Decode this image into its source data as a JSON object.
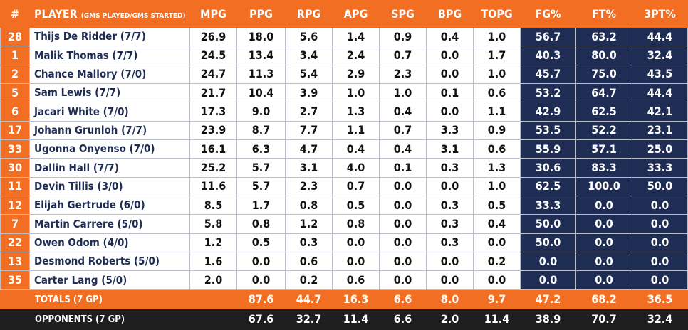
{
  "header": {
    "num": "#",
    "player": "PLAYER",
    "player_sub": "(GMS PLAYED/GMS STARTED)",
    "cols": [
      "MPG",
      "PPG",
      "RPG",
      "APG",
      "SPG",
      "BPG",
      "TOPG",
      "FG%",
      "FT%",
      "3PT%"
    ]
  },
  "players": [
    {
      "num": "28",
      "name": "Thijs De Ridder (7/7)",
      "stats": [
        "26.9",
        "18.0",
        "5.6",
        "1.4",
        "0.9",
        "0.4",
        "1.0",
        "56.7",
        "63.2",
        "44.4"
      ]
    },
    {
      "num": "1",
      "name": "Malik Thomas (7/7)",
      "stats": [
        "24.5",
        "13.4",
        "3.4",
        "2.4",
        "0.7",
        "0.0",
        "1.7",
        "40.3",
        "80.0",
        "32.4"
      ]
    },
    {
      "num": "2",
      "name": "Chance Mallory (7/0)",
      "stats": [
        "24.7",
        "11.3",
        "5.4",
        "2.9",
        "2.3",
        "0.0",
        "1.0",
        "45.7",
        "75.0",
        "43.5"
      ]
    },
    {
      "num": "5",
      "name": "Sam Lewis (7/7)",
      "stats": [
        "21.7",
        "10.4",
        "3.9",
        "1.0",
        "1.0",
        "0.1",
        "0.6",
        "53.2",
        "64.7",
        "44.4"
      ]
    },
    {
      "num": "6",
      "name": "Jacari White (7/0)",
      "stats": [
        "17.3",
        "9.0",
        "2.7",
        "1.3",
        "0.4",
        "0.0",
        "1.1",
        "42.9",
        "62.5",
        "42.1"
      ]
    },
    {
      "num": "17",
      "name": "Johann Grunloh (7/7)",
      "stats": [
        "23.9",
        "8.7",
        "7.7",
        "1.1",
        "0.7",
        "3.3",
        "0.9",
        "53.5",
        "52.2",
        "23.1"
      ]
    },
    {
      "num": "33",
      "name": "Ugonna Onyenso (7/0)",
      "stats": [
        "16.1",
        "6.3",
        "4.7",
        "0.4",
        "0.4",
        "3.1",
        "0.6",
        "55.9",
        "57.1",
        "25.0"
      ]
    },
    {
      "num": "30",
      "name": "Dallin Hall (7/7)",
      "stats": [
        "25.2",
        "5.7",
        "3.1",
        "4.0",
        "0.1",
        "0.3",
        "1.3",
        "30.6",
        "83.3",
        "33.3"
      ]
    },
    {
      "num": "11",
      "name": "Devin Tillis (3/0)",
      "stats": [
        "11.6",
        "5.7",
        "2.3",
        "0.7",
        "0.0",
        "0.0",
        "1.0",
        "62.5",
        "100.0",
        "50.0"
      ]
    },
    {
      "num": "12",
      "name": "Elijah Gertrude (6/0)",
      "stats": [
        "8.5",
        "1.7",
        "0.8",
        "0.5",
        "0.0",
        "0.3",
        "0.5",
        "33.3",
        "0.0",
        "0.0"
      ]
    },
    {
      "num": "7",
      "name": "Martin Carrere (5/0)",
      "stats": [
        "5.8",
        "0.8",
        "1.2",
        "0.8",
        "0.0",
        "0.3",
        "0.4",
        "50.0",
        "0.0",
        "0.0"
      ]
    },
    {
      "num": "22",
      "name": "Owen Odom (4/0)",
      "stats": [
        "1.2",
        "0.5",
        "0.3",
        "0.0",
        "0.0",
        "0.3",
        "0.0",
        "50.0",
        "0.0",
        "0.0"
      ]
    },
    {
      "num": "13",
      "name": "Desmond Roberts (5/0)",
      "stats": [
        "1.6",
        "0.0",
        "0.6",
        "0.0",
        "0.0",
        "0.0",
        "0.2",
        "0.0",
        "0.0",
        "0.0"
      ]
    },
    {
      "num": "35",
      "name": "Carter Lang (5/0)",
      "stats": [
        "2.0",
        "0.0",
        "0.2",
        "0.6",
        "0.0",
        "0.0",
        "0.0",
        "0.0",
        "0.0",
        "0.0"
      ]
    }
  ],
  "totals": {
    "label": "TOTALS (7 GP)",
    "stats": [
      "",
      "87.6",
      "44.7",
      "16.3",
      "6.6",
      "8.0",
      "9.7",
      "47.2",
      "68.2",
      "36.5"
    ]
  },
  "opponents": {
    "label": "OPPONENTS (7 GP)",
    "stats": [
      "",
      "67.6",
      "32.7",
      "11.4",
      "6.6",
      "2.0",
      "11.4",
      "38.9",
      "70.7",
      "32.4"
    ]
  },
  "colors": {
    "orange": "#f26e22",
    "navy": "#1f2d55",
    "dark": "#1e1e1e"
  }
}
